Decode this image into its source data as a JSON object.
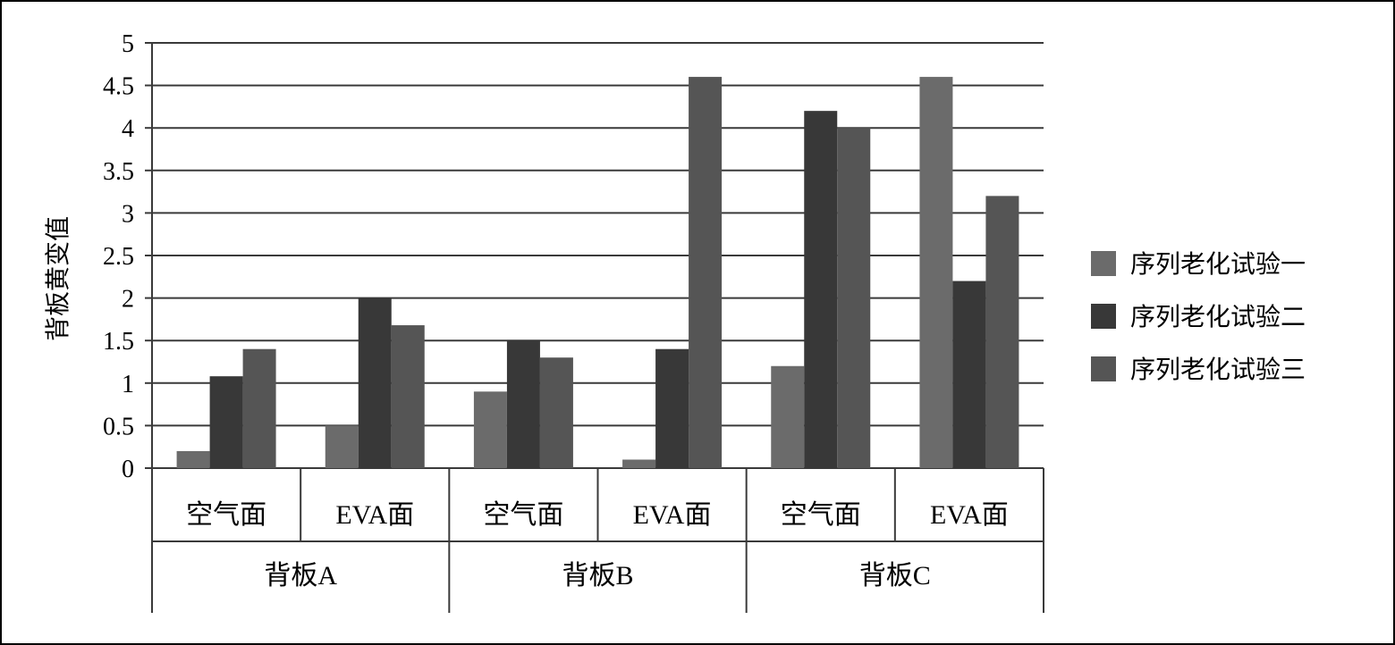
{
  "chart_data": {
    "type": "bar",
    "title": "",
    "ylabel": "背板黄变值",
    "xlabel": "",
    "ylim": [
      0,
      5
    ],
    "yticks": [
      "0",
      "0.5",
      "1",
      "1.5",
      "2",
      "2.5",
      "3",
      "3.5",
      "4",
      "4.5",
      "5"
    ],
    "grid": true,
    "legend_position": "right",
    "categories": [
      "空气面",
      "EVA面",
      "空气面",
      "EVA面",
      "空气面",
      "EVA面"
    ],
    "groups": [
      {
        "label": "背板A",
        "span": 2
      },
      {
        "label": "背板B",
        "span": 2
      },
      {
        "label": "背板C",
        "span": 2
      }
    ],
    "series": [
      {
        "name": "序列老化试验一",
        "color": "#6b6b6b",
        "values": [
          0.2,
          0.5,
          0.9,
          0.1,
          1.2,
          4.6
        ]
      },
      {
        "name": "序列老化试验二",
        "color": "#383838",
        "values": [
          1.08,
          2.0,
          1.5,
          1.4,
          4.2,
          2.2
        ]
      },
      {
        "name": "序列老化试验三",
        "color": "#555555",
        "values": [
          1.4,
          1.68,
          1.3,
          4.6,
          4.0,
          3.2
        ]
      }
    ]
  }
}
